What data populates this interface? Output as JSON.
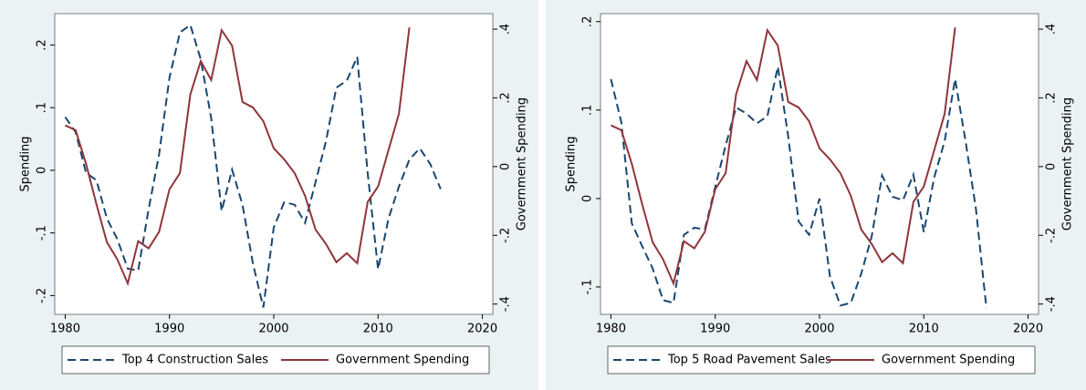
{
  "chart_data": [
    {
      "type": "line",
      "x": [
        1980,
        1981,
        1982,
        1983,
        1984,
        1985,
        1986,
        1987,
        1988,
        1989,
        1990,
        1991,
        1992,
        1993,
        1994,
        1995,
        1996,
        1997,
        1998,
        1999,
        2000,
        2001,
        2002,
        2003,
        2004,
        2005,
        2006,
        2007,
        2008,
        2009,
        2010,
        2011,
        2012,
        2013,
        2014,
        2015,
        2016
      ],
      "series": [
        {
          "name": "Top 4 Construction Sales",
          "color": "#1a476f",
          "dash": true,
          "values": [
            0.085,
            0.061,
            -0.004,
            -0.016,
            -0.077,
            -0.11,
            -0.157,
            -0.16,
            -0.062,
            0.025,
            0.148,
            0.22,
            0.232,
            0.177,
            0.083,
            -0.065,
            0.001,
            -0.055,
            -0.149,
            -0.219,
            -0.091,
            -0.051,
            -0.055,
            -0.084,
            -0.019,
            0.046,
            0.132,
            0.143,
            0.181,
            -0.004,
            -0.158,
            -0.077,
            -0.026,
            0.017,
            0.035,
            0.01,
            -0.03
          ]
        },
        {
          "name": "Government Spending",
          "color": "#90353b",
          "axis": "y2",
          "values": [
            0.12,
            0.106,
            0.008,
            -0.11,
            -0.22,
            -0.27,
            -0.34,
            -0.217,
            -0.238,
            -0.19,
            -0.066,
            -0.019,
            0.21,
            0.307,
            0.252,
            0.397,
            0.352,
            0.188,
            0.172,
            0.132,
            0.053,
            0.021,
            -0.019,
            -0.085,
            -0.183,
            -0.225,
            -0.278,
            -0.252,
            -0.281,
            -0.103,
            -0.058,
            0.048,
            0.154,
            0.405,
            null,
            null,
            null
          ]
        }
      ],
      "y_label": "Spending",
      "y2_label": "Government Spending",
      "xlim": [
        1979,
        2021
      ],
      "xticks": [
        1980,
        1990,
        2000,
        2010,
        2020
      ],
      "ylim": [
        -0.23,
        0.25
      ],
      "yticks": [
        {
          "value": -0.2,
          "label": "-.2"
        },
        {
          "value": -0.1,
          "label": "-.1"
        },
        0,
        {
          "value": 0.1,
          "label": ".1"
        },
        {
          "value": 0.2,
          "label": ".2"
        }
      ],
      "y2lim": [
        -0.43,
        0.445
      ],
      "y2ticks": [
        {
          "value": -0.4,
          "label": "-.4"
        },
        {
          "value": -0.2,
          "label": "-.2"
        },
        0,
        {
          "value": 0.2,
          "label": ".2"
        },
        {
          "value": 0.4,
          "label": ".4"
        }
      ],
      "legend": "bottom"
    },
    {
      "type": "line",
      "x": [
        1980,
        1981,
        1982,
        1983,
        1984,
        1985,
        1986,
        1987,
        1988,
        1989,
        1990,
        1991,
        1992,
        1993,
        1994,
        1995,
        1996,
        1997,
        1998,
        1999,
        2000,
        2001,
        2002,
        2003,
        2004,
        2005,
        2006,
        2007,
        2008,
        2009,
        2010,
        2011,
        2012,
        2013,
        2014,
        2015,
        2016
      ],
      "series": [
        {
          "name": "Top 5 Road Pavement Sales",
          "color": "#1a476f",
          "dash": true,
          "values": [
            0.135,
            0.086,
            -0.028,
            -0.054,
            -0.079,
            -0.115,
            -0.118,
            -0.041,
            -0.033,
            -0.035,
            0.013,
            0.06,
            0.103,
            0.096,
            0.085,
            0.093,
            0.149,
            0.07,
            -0.026,
            -0.041,
            0,
            -0.088,
            -0.121,
            -0.118,
            -0.085,
            -0.043,
            0.026,
            0.002,
            -0.002,
            0.027,
            -0.038,
            0.024,
            0.065,
            0.135,
            0.065,
            -0.012,
            -0.124
          ]
        },
        {
          "name": "Government Spending",
          "color": "#90353b",
          "axis": "y2",
          "values": [
            0.12,
            0.106,
            0.008,
            -0.11,
            -0.22,
            -0.27,
            -0.34,
            -0.217,
            -0.238,
            -0.19,
            -0.066,
            -0.019,
            0.21,
            0.307,
            0.252,
            0.397,
            0.352,
            0.188,
            0.172,
            0.132,
            0.053,
            0.021,
            -0.019,
            -0.085,
            -0.183,
            -0.225,
            -0.278,
            -0.252,
            -0.281,
            -0.103,
            -0.058,
            0.048,
            0.154,
            0.405,
            null,
            null,
            null
          ]
        }
      ],
      "y_label": "Spending",
      "y2_label": "Government Spending",
      "xlim": [
        1979,
        2021
      ],
      "xticks": [
        1980,
        1990,
        2000,
        2010,
        2020
      ],
      "ylim": [
        -0.131,
        0.209
      ],
      "yticks": [
        {
          "value": -0.1,
          "label": "-.1"
        },
        0,
        {
          "value": 0.1,
          "label": ".1"
        },
        {
          "value": 0.2,
          "label": ".2"
        }
      ],
      "y2lim": [
        -0.43,
        0.445
      ],
      "y2ticks": [
        {
          "value": -0.4,
          "label": "-.4"
        },
        {
          "value": -0.2,
          "label": "-.2"
        },
        0,
        {
          "value": 0.2,
          "label": ".2"
        },
        {
          "value": 0.4,
          "label": ".4"
        }
      ],
      "legend": "bottom"
    }
  ]
}
